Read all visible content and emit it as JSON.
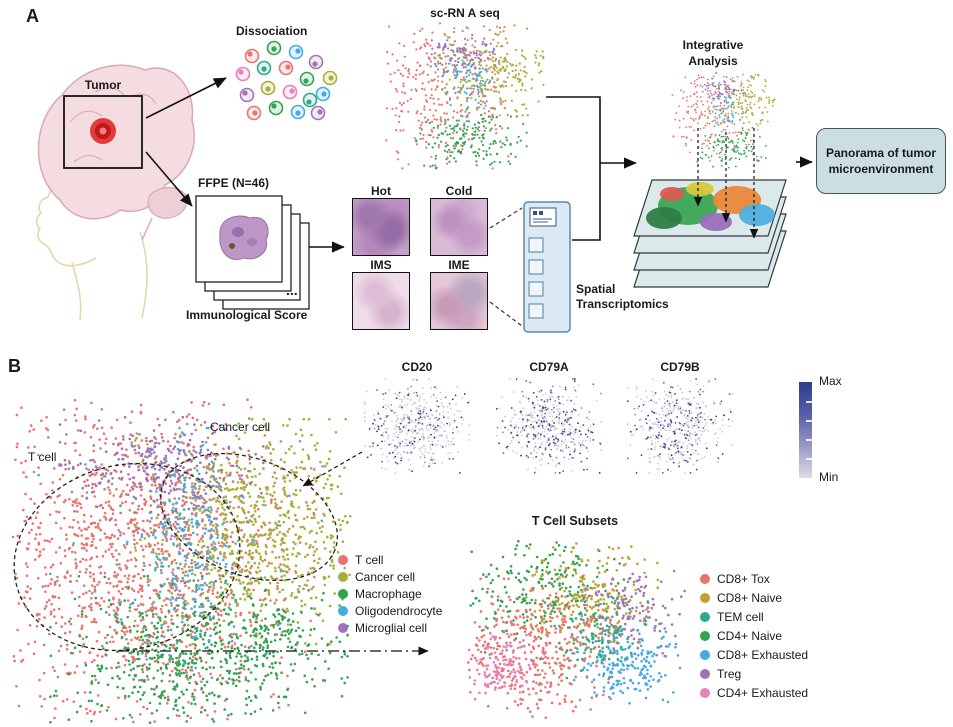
{
  "figure": {
    "panel_a_label": "A",
    "panel_b_label": "B"
  },
  "panel_a": {
    "tumor_label": "Tumor",
    "dissociation_label": "Dissociation",
    "scrna_title": "sc-RN A seq",
    "ffpe_label": "FFPE (N=46)",
    "immunological_score_label": "Immunological Score",
    "ellipsis": "...",
    "tissue_labels": [
      "Hot",
      "Cold",
      "IMS",
      "IME"
    ],
    "spatial_line1": "Spatial",
    "spatial_line2": "Transcriptomics",
    "integrative_line1": "Integrative",
    "integrative_line2": "Analysis",
    "panorama_line1": "Panorama of tumor",
    "panorama_line2": "microenvironment",
    "dissociation_cell_colors": [
      "#E8746E",
      "#33A352",
      "#46ABE0",
      "#A272B8",
      "#A9AE3A",
      "#E87FB5",
      "#2FA98C",
      "#E8746E",
      "#33A352",
      "#46ABE0",
      "#A272B8",
      "#A9AE3A",
      "#E87FB5",
      "#2FA98C",
      "#E8746E",
      "#33A352",
      "#46ABE0",
      "#A272B8"
    ]
  },
  "panel_b": {
    "tcell_annotation": "T cell",
    "cancer_annotation": "Cancer cell",
    "feature_titles": [
      "CD20",
      "CD79A",
      "CD79B"
    ],
    "colorbar_max": "Max",
    "colorbar_min": "Min",
    "tsubsets_title": "T Cell Subsets",
    "main_legend": [
      {
        "label": "T cell",
        "color": "#E8746E"
      },
      {
        "label": "Cancer cell",
        "color": "#A9AE3A"
      },
      {
        "label": "Macrophage",
        "color": "#33A352"
      },
      {
        "label": "Oligodendrocyte",
        "color": "#46ABE0"
      },
      {
        "label": "Microglial cell",
        "color": "#A272B8"
      }
    ],
    "subsets_legend": [
      {
        "label": "CD8+ Tox",
        "color": "#E8746E"
      },
      {
        "label": "CD8+ Naive",
        "color": "#BFA32E"
      },
      {
        "label": "TEM cell",
        "color": "#2FA98C"
      },
      {
        "label": "CD4+ Naive",
        "color": "#33A352"
      },
      {
        "label": "CD8+ Exhausted",
        "color": "#46ABE0"
      },
      {
        "label": "Treg",
        "color": "#A272B8"
      },
      {
        "label": "CD4+ Exhausted",
        "color": "#E87FB5"
      }
    ]
  },
  "chart_data": [
    {
      "id": "scrna_umap",
      "type": "scatter",
      "title": "sc-RN A seq",
      "r": 1.1,
      "clusters": [
        {
          "name": "T cell",
          "color": "#E8746E",
          "n": 330,
          "cx": 0.36,
          "cy": 0.47,
          "sx": 0.21,
          "sy": 0.22
        },
        {
          "name": "Cancer cell",
          "color": "#A9AE3A",
          "n": 230,
          "cx": 0.7,
          "cy": 0.3,
          "sx": 0.16,
          "sy": 0.14
        },
        {
          "name": "Macrophage",
          "color": "#33A352",
          "n": 170,
          "cx": 0.54,
          "cy": 0.8,
          "sx": 0.15,
          "sy": 0.1
        },
        {
          "name": "Oligodendrocyte",
          "color": "#46ABE0",
          "n": 80,
          "cx": 0.52,
          "cy": 0.4,
          "sx": 0.07,
          "sy": 0.13
        },
        {
          "name": "Microglial cell",
          "color": "#A272B8",
          "n": 90,
          "cx": 0.46,
          "cy": 0.2,
          "sx": 0.11,
          "sy": 0.06
        }
      ]
    },
    {
      "id": "integ_umap",
      "type": "scatter",
      "title": "Integrative Analysis",
      "r": 0.9,
      "clusters": [
        {
          "name": "T cell",
          "color": "#E8746E",
          "n": 210,
          "cx": 0.36,
          "cy": 0.45,
          "sx": 0.2,
          "sy": 0.2
        },
        {
          "name": "Cancer cell",
          "color": "#A9AE3A",
          "n": 140,
          "cx": 0.71,
          "cy": 0.3,
          "sx": 0.15,
          "sy": 0.13
        },
        {
          "name": "Macrophage",
          "color": "#33A352",
          "n": 105,
          "cx": 0.55,
          "cy": 0.78,
          "sx": 0.14,
          "sy": 0.1
        },
        {
          "name": "Oligodendrocyte",
          "color": "#46ABE0",
          "n": 50,
          "cx": 0.52,
          "cy": 0.38,
          "sx": 0.07,
          "sy": 0.12
        },
        {
          "name": "Microglial cell",
          "color": "#A272B8",
          "n": 60,
          "cx": 0.45,
          "cy": 0.19,
          "sx": 0.1,
          "sy": 0.06
        }
      ]
    },
    {
      "id": "main_umap",
      "type": "scatter",
      "title": "Cell type UMAP",
      "r": 1.3,
      "clusters": [
        {
          "name": "T cell",
          "color": "#E8746E",
          "n": 1450,
          "cx": 0.36,
          "cy": 0.49,
          "sx": 0.23,
          "sy": 0.24
        },
        {
          "name": "Cancer cell",
          "color": "#A9AE3A",
          "n": 800,
          "cx": 0.73,
          "cy": 0.41,
          "sx": 0.16,
          "sy": 0.15
        },
        {
          "name": "Macrophage",
          "color": "#33A352",
          "n": 650,
          "cx": 0.55,
          "cy": 0.8,
          "sx": 0.19,
          "sy": 0.11
        },
        {
          "name": "Macrophage",
          "color": "#33A352",
          "n": 60,
          "cx": 0.78,
          "cy": 0.73,
          "sx": 0.05,
          "sy": 0.05
        },
        {
          "name": "Microglial cell",
          "color": "#A272B8",
          "n": 280,
          "cx": 0.44,
          "cy": 0.22,
          "sx": 0.13,
          "sy": 0.07
        },
        {
          "name": "Oligodendrocyte",
          "color": "#46ABE0",
          "n": 230,
          "cx": 0.52,
          "cy": 0.46,
          "sx": 0.06,
          "sy": 0.16
        },
        {
          "name": "Oligodendrocyte",
          "color": "#46ABE0",
          "n": 60,
          "cx": 0.5,
          "cy": 0.45,
          "sx": 0.2,
          "sy": 0.2
        }
      ]
    },
    {
      "id": "feat_cd20",
      "type": "feature_scatter",
      "title": "CD20",
      "r": 0.9,
      "base_color": "#C9C9D3",
      "palette": [
        "#8B87C4",
        "#5E5AA8",
        "#3F3D96",
        "#2E2F86"
      ],
      "highlight_fraction": 0.3,
      "blob": {
        "n": 440,
        "cx": 0.5,
        "cy": 0.47,
        "sx": 0.21,
        "sy": 0.2
      }
    },
    {
      "id": "feat_cd79a",
      "type": "feature_scatter",
      "title": "CD79A",
      "r": 0.9,
      "base_color": "#C9C9D3",
      "palette": [
        "#8B87C4",
        "#5E5AA8",
        "#3F3D96",
        "#2E2F86"
      ],
      "highlight_fraction": 0.5,
      "blob": {
        "n": 440,
        "cx": 0.5,
        "cy": 0.47,
        "sx": 0.21,
        "sy": 0.2
      }
    },
    {
      "id": "feat_cd79b",
      "type": "feature_scatter",
      "title": "CD79B",
      "r": 0.9,
      "base_color": "#C9C9D3",
      "palette": [
        "#8B87C4",
        "#5E5AA8",
        "#3F3D96",
        "#2E2F86"
      ],
      "highlight_fraction": 0.44,
      "blob": {
        "n": 440,
        "cx": 0.5,
        "cy": 0.47,
        "sx": 0.21,
        "sy": 0.2
      }
    },
    {
      "id": "subsets_umap",
      "type": "scatter",
      "title": "T Cell Subsets",
      "r": 1.3,
      "clusters": [
        {
          "name": "CD4+ Naive",
          "color": "#33A352",
          "n": 240,
          "cx": 0.36,
          "cy": 0.286,
          "sx": 0.16,
          "sy": 0.16
        },
        {
          "name": "CD8+ Naive",
          "color": "#BFA32E",
          "n": 210,
          "cx": 0.573,
          "cy": 0.318,
          "sx": 0.13,
          "sy": 0.13
        },
        {
          "name": "Treg",
          "color": "#A272B8",
          "n": 130,
          "cx": 0.764,
          "cy": 0.385,
          "sx": 0.1,
          "sy": 0.11
        },
        {
          "name": "TEM cell",
          "color": "#2FA98C",
          "n": 130,
          "cx": 0.632,
          "cy": 0.55,
          "sx": 0.09,
          "sy": 0.1
        },
        {
          "name": "CD8+ Tox",
          "color": "#E8746E",
          "n": 380,
          "cx": 0.314,
          "cy": 0.604,
          "sx": 0.16,
          "sy": 0.17
        },
        {
          "name": "CD4+ Exhausted",
          "color": "#E87FB5",
          "n": 120,
          "cx": 0.177,
          "cy": 0.69,
          "sx": 0.08,
          "sy": 0.08
        },
        {
          "name": "CD8+ Exhausted",
          "color": "#46ABE0",
          "n": 170,
          "cx": 0.745,
          "cy": 0.69,
          "sx": 0.11,
          "sy": 0.09
        }
      ]
    }
  ]
}
